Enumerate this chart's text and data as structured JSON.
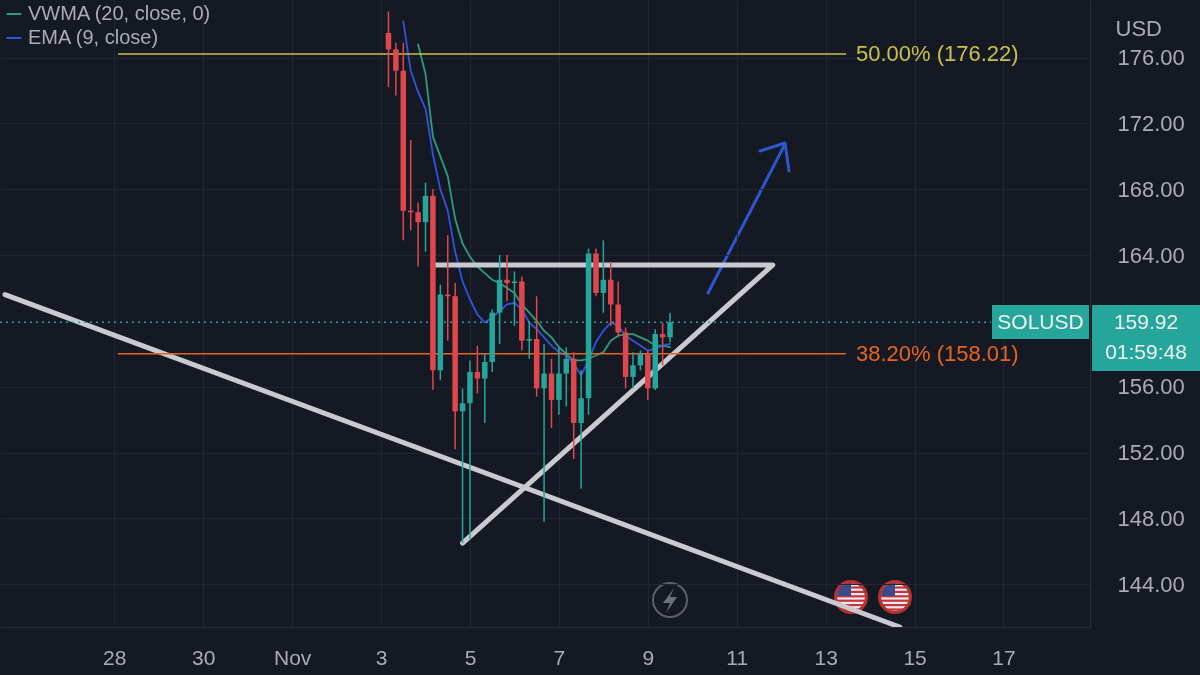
{
  "chart_data": {
    "type": "candlestick",
    "x": [
      "--11-03T04:00",
      "--11-03T08:00",
      "--11-03T12:00",
      "--11-03T16:00",
      "--11-03T20:00",
      "--11-04T00:00",
      "--11-04T04:00",
      "--11-04T08:00",
      "--11-04T12:00",
      "--11-04T16:00",
      "--11-04T20:00",
      "--11-05T00:00",
      "--11-05T04:00",
      "--11-05T08:00",
      "--11-05T12:00",
      "--11-05T16:00",
      "--11-05T20:00",
      "--11-06T00:00",
      "--11-06T04:00",
      "--11-06T08:00",
      "--11-06T12:00",
      "--11-06T16:00",
      "--11-06T20:00",
      "--11-07T00:00",
      "--11-07T04:00",
      "--11-07T08:00",
      "--11-07T12:00",
      "--11-07T16:00",
      "--11-07T20:00",
      "--11-08T00:00",
      "--11-08T04:00",
      "--11-08T08:00",
      "--11-08T12:00",
      "--11-08T16:00",
      "--11-08T20:00",
      "--11-09T00:00",
      "--11-09T04:00",
      "--11-09T08:00",
      "--11-09T12:00"
    ],
    "ohlc": [
      [
        177.5,
        178.8,
        174.2,
        176.5
      ],
      [
        176.5,
        176.9,
        173.7,
        175.2
      ],
      [
        175.2,
        176.9,
        164.9,
        166.7
      ],
      [
        166.7,
        171.0,
        165.5,
        166.6
      ],
      [
        166.6,
        167.2,
        163.3,
        166.0
      ],
      [
        166.0,
        168.4,
        164.2,
        167.6
      ],
      [
        167.6,
        168.0,
        155.8,
        157.0
      ],
      [
        157.0,
        162.2,
        156.4,
        161.6
      ],
      [
        161.6,
        165.2,
        158.8,
        161.5
      ],
      [
        161.5,
        162.3,
        152.2,
        154.5
      ],
      [
        154.5,
        155.9,
        146.5,
        155.0
      ],
      [
        155.0,
        157.6,
        146.7,
        156.9
      ],
      [
        156.9,
        158.5,
        155.6,
        156.5
      ],
      [
        156.5,
        158.0,
        153.8,
        157.5
      ],
      [
        157.5,
        160.7,
        156.9,
        160.5
      ],
      [
        160.5,
        164.0,
        158.6,
        162.5
      ],
      [
        162.5,
        164.0,
        161.2,
        162.3
      ],
      [
        162.3,
        163.0,
        159.7,
        162.4
      ],
      [
        162.4,
        162.7,
        158.2,
        158.8
      ],
      [
        158.8,
        160.0,
        157.7,
        158.9
      ],
      [
        158.9,
        161.5,
        155.4,
        155.9
      ],
      [
        155.9,
        158.6,
        147.8,
        156.8
      ],
      [
        156.8,
        157.7,
        153.5,
        155.2
      ],
      [
        155.2,
        158.4,
        154.3,
        156.8
      ],
      [
        156.8,
        158.4,
        154.8,
        157.7
      ],
      [
        157.7,
        158.1,
        151.6,
        153.8
      ],
      [
        153.8,
        157.0,
        149.8,
        155.3
      ],
      [
        155.3,
        164.4,
        154.3,
        164.1
      ],
      [
        164.1,
        164.4,
        161.5,
        161.7
      ],
      [
        161.7,
        164.9,
        160.5,
        162.5
      ],
      [
        162.5,
        163.6,
        159.7,
        161.0
      ],
      [
        161.0,
        162.4,
        159.0,
        159.3
      ],
      [
        159.3,
        159.6,
        155.9,
        156.6
      ],
      [
        156.6,
        158.1,
        155.9,
        157.3
      ],
      [
        157.3,
        158.2,
        157.0,
        158.0
      ],
      [
        158.0,
        158.2,
        155.2,
        155.9
      ],
      [
        155.9,
        159.5,
        155.8,
        159.2
      ],
      [
        159.2,
        159.9,
        157.3,
        159.0
      ],
      [
        159.0,
        160.5,
        158.7,
        159.92
      ]
    ],
    "colors": [
      "#e0474c",
      "#e0474c",
      "#e0474c",
      "#e0474c",
      "#e0474c",
      "#26a69a",
      "#e0474c",
      "#26a69a",
      "#e0474c",
      "#e0474c",
      "#26a69a",
      "#26a69a",
      "#e0474c",
      "#26a69a",
      "#26a69a",
      "#26a69a",
      "#e0474c",
      "#26a69a",
      "#e0474c",
      "#26a69a",
      "#e0474c",
      "#26a69a",
      "#e0474c",
      "#26a69a",
      "#26a69a",
      "#e0474c",
      "#26a69a",
      "#26a69a",
      "#e0474c",
      "#26a69a",
      "#e0474c",
      "#e0474c",
      "#e0474c",
      "#26a69a",
      "#26a69a",
      "#e0474c",
      "#26a69a",
      "#e0474c",
      "#26a69a"
    ],
    "series": [
      {
        "name": "VWMA (20, close, 0)",
        "type": "line",
        "color": "#2a9d7c",
        "x": [
          "--11-03T20:00",
          "--11-04T00:00",
          "--11-04T04:00",
          "--11-04T08:00",
          "--11-04T12:00",
          "--11-04T16:00",
          "--11-04T20:00",
          "--11-05T00:00",
          "--11-05T04:00",
          "--11-05T08:00",
          "--11-05T12:00",
          "--11-05T16:00",
          "--11-05T20:00",
          "--11-06T00:00",
          "--11-06T04:00",
          "--11-06T08:00",
          "--11-06T12:00",
          "--11-06T16:00",
          "--11-06T20:00",
          "--11-07T00:00",
          "--11-07T04:00",
          "--11-07T08:00",
          "--11-07T12:00",
          "--11-07T16:00",
          "--11-07T20:00",
          "--11-08T00:00",
          "--11-08T04:00",
          "--11-08T08:00",
          "--11-08T12:00",
          "--11-08T16:00",
          "--11-08T20:00",
          "--11-09T00:00",
          "--11-09T04:00",
          "--11-09T08:00",
          "--11-09T12:00"
        ],
        "values": [
          176.8,
          175.0,
          171.2,
          170.0,
          168.8,
          166.2,
          164.7,
          163.9,
          163.3,
          162.9,
          162.5,
          162.3,
          162.0,
          161.7,
          161.0,
          160.5,
          160.0,
          159.4,
          159.0,
          158.4,
          158.0,
          157.6,
          157.6,
          157.7,
          157.9,
          158.1,
          158.8,
          159.1,
          159.2,
          159.2,
          159.0,
          158.8,
          158.5,
          158.5,
          158.4
        ]
      },
      {
        "name": "EMA (9, close)",
        "type": "line",
        "color": "#2f54e0",
        "x": [
          "--11-03T12:00",
          "--11-03T16:00",
          "--11-03T20:00",
          "--11-04T00:00",
          "--11-04T04:00",
          "--11-04T08:00",
          "--11-04T12:00",
          "--11-04T16:00",
          "--11-04T20:00",
          "--11-05T00:00",
          "--11-05T04:00",
          "--11-05T08:00",
          "--11-05T12:00",
          "--11-05T16:00",
          "--11-05T20:00",
          "--11-06T00:00",
          "--11-06T04:00",
          "--11-06T08:00",
          "--11-06T12:00",
          "--11-06T16:00",
          "--11-06T20:00",
          "--11-07T00:00",
          "--11-07T04:00",
          "--11-07T08:00",
          "--11-07T12:00",
          "--11-07T16:00",
          "--11-07T20:00",
          "--11-08T00:00",
          "--11-08T04:00",
          "--11-08T08:00",
          "--11-08T12:00",
          "--11-08T16:00",
          "--11-08T20:00",
          "--11-09T00:00",
          "--11-09T04:00",
          "--11-09T08:00",
          "--11-09T12:00"
        ],
        "values": [
          178.2,
          175.2,
          173.9,
          172.9,
          170.1,
          168.0,
          166.7,
          164.2,
          162.4,
          161.3,
          160.4,
          159.9,
          160.2,
          160.6,
          161.0,
          161.1,
          160.7,
          159.9,
          159.5,
          159.0,
          158.5,
          158.1,
          157.9,
          157.4,
          156.7,
          157.6,
          158.7,
          159.4,
          159.9,
          159.7,
          159.1,
          158.8,
          158.5,
          158.2,
          158.3,
          158.5,
          158.6
        ]
      },
      {
        "type": "line",
        "color": "#c8cad0",
        "x": [
          "--10-25T13:00",
          "--11-14T16:00"
        ],
        "values": [
          161.6,
          141.4
        ]
      },
      {
        "type": "line",
        "color": "#c8cad0",
        "x": [
          "--11-04T04:00",
          "--11-11T19:30",
          "--11-04T20:00"
        ],
        "values": [
          163.4,
          163.4,
          146.5
        ]
      }
    ],
    "ylabel": "USD",
    "xlim": [
      "--10-25T13:00",
      "--11-18T20:00"
    ],
    "xticks": [
      {
        "value": "--10-28",
        "label": "28"
      },
      {
        "value": "--10-30",
        "label": "30"
      },
      {
        "value": "--11-01",
        "label": "Nov"
      },
      {
        "value": "--11-03",
        "label": "3"
      },
      {
        "value": "--11-05",
        "label": "5"
      },
      {
        "value": "--11-07",
        "label": "7"
      },
      {
        "value": "--11-09",
        "label": "9"
      },
      {
        "value": "--11-11",
        "label": "11"
      },
      {
        "value": "--11-13",
        "label": "13"
      },
      {
        "value": "--11-15",
        "label": "15"
      },
      {
        "value": "--11-17",
        "label": "17"
      }
    ],
    "ylim": [
      141.4,
      179.5
    ],
    "yticks": [
      {
        "value": 144,
        "label": "144.00"
      },
      {
        "value": 148,
        "label": "148.00"
      },
      {
        "value": 152,
        "label": "152.00"
      },
      {
        "value": 156,
        "label": "156.00"
      },
      {
        "value": 164,
        "label": "164.00"
      },
      {
        "value": 168,
        "label": "168.00"
      },
      {
        "value": 172,
        "label": "172.00"
      },
      {
        "value": 176,
        "label": "176.00"
      }
    ],
    "grid": true,
    "legend": "top left",
    "ref_lines": [
      {
        "axis": "y",
        "value": 176.22,
        "label": "50.00% (176.22)",
        "color": "#c9c24a"
      },
      {
        "axis": "y",
        "value": 158.01,
        "label": "38.20% (158.01)",
        "color": "#e8641e"
      },
      {
        "axis": "y",
        "value": 159.92,
        "color": "#26a69a",
        "line_style": "dotted"
      }
    ],
    "annotations": [
      "SOLUSD",
      "159.92",
      "01:59:48"
    ]
  }
}
